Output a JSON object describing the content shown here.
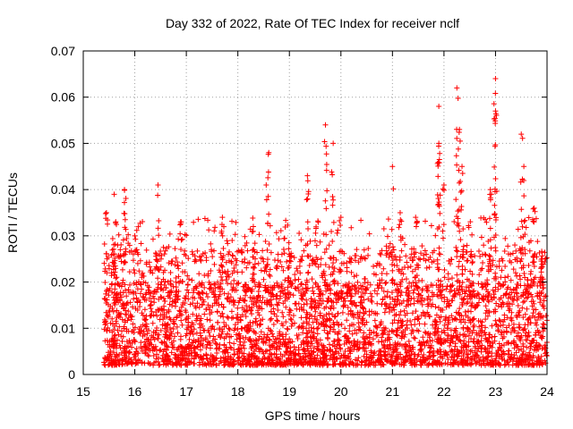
{
  "chart_data": {
    "type": "scatter",
    "title": "Day 332 of 2022, Rate Of TEC Index for receiver nclf",
    "xlabel": "GPS time / hours",
    "ylabel": "ROTI / TECUs",
    "xlim": [
      15,
      24
    ],
    "ylim": [
      0,
      0.07
    ],
    "x_ticks": [
      "15",
      "16",
      "17",
      "18",
      "19",
      "20",
      "21",
      "22",
      "23",
      "24"
    ],
    "y_ticks": [
      "0",
      "0.01",
      "0.02",
      "0.03",
      "0.04",
      "0.05",
      "0.06",
      "0.07"
    ],
    "grid": true,
    "marker": "+",
    "series_color": "#ff0000",
    "series": [
      {
        "name": "ROTI",
        "x_range": [
          15.4,
          24.0
        ],
        "typical_range": [
          0.002,
          0.02
        ],
        "peaks": [
          {
            "x": 15.45,
            "y": 0.035
          },
          {
            "x": 15.6,
            "y": 0.039
          },
          {
            "x": 15.8,
            "y": 0.04
          },
          {
            "x": 16.0,
            "y": 0.03
          },
          {
            "x": 16.45,
            "y": 0.041
          },
          {
            "x": 16.9,
            "y": 0.033
          },
          {
            "x": 17.7,
            "y": 0.034
          },
          {
            "x": 18.3,
            "y": 0.032
          },
          {
            "x": 18.55,
            "y": 0.041
          },
          {
            "x": 18.6,
            "y": 0.048
          },
          {
            "x": 19.0,
            "y": 0.026
          },
          {
            "x": 19.35,
            "y": 0.043
          },
          {
            "x": 19.7,
            "y": 0.054
          },
          {
            "x": 19.85,
            "y": 0.05
          },
          {
            "x": 20.0,
            "y": 0.034
          },
          {
            "x": 21.0,
            "y": 0.045
          },
          {
            "x": 21.15,
            "y": 0.035
          },
          {
            "x": 21.45,
            "y": 0.034
          },
          {
            "x": 21.9,
            "y": 0.058
          },
          {
            "x": 21.9,
            "y": 0.05
          },
          {
            "x": 22.0,
            "y": 0.041
          },
          {
            "x": 22.25,
            "y": 0.062
          },
          {
            "x": 22.3,
            "y": 0.053
          },
          {
            "x": 22.35,
            "y": 0.045
          },
          {
            "x": 22.9,
            "y": 0.04
          },
          {
            "x": 23.0,
            "y": 0.064
          },
          {
            "x": 23.0,
            "y": 0.057
          },
          {
            "x": 23.5,
            "y": 0.052
          },
          {
            "x": 23.55,
            "y": 0.045
          },
          {
            "x": 23.75,
            "y": 0.036
          },
          {
            "x": 23.9,
            "y": 0.025
          }
        ],
        "point_count_estimate": 4000
      }
    ]
  }
}
